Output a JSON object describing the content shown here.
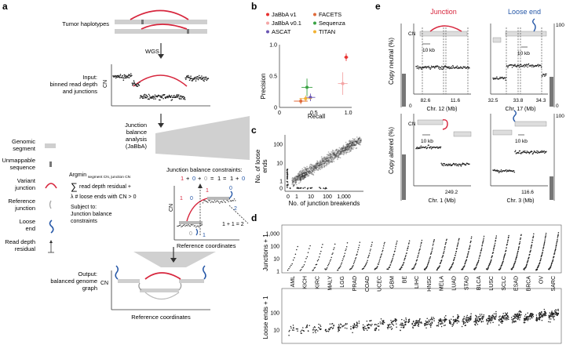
{
  "panels": {
    "a": "a",
    "b": "b",
    "c": "c",
    "d": "d",
    "e": "e"
  },
  "a": {
    "tumor_haplotypes": "Tumor haplotypes",
    "wgs": "WGS",
    "input_l1": "Input:",
    "input_l2": "binned read depth",
    "input_l3": "and junctions",
    "cn": "CN",
    "jab_l1": "Junction",
    "jab_l2": "balance",
    "jab_l3": "analysis",
    "jab_l4": "(JaBbA)",
    "leg_genomic_l1": "Genomic",
    "leg_genomic_l2": "segment",
    "leg_unmap_l1": "Unmappable",
    "leg_unmap_l2": "sequence",
    "leg_variant_l1": "Variant",
    "leg_variant_l2": "junction",
    "leg_ref_l1": "Reference",
    "leg_ref_l2": "junction",
    "leg_loose_l1": "Loose",
    "leg_loose_l2": "end",
    "leg_rd_l1": "Read depth",
    "leg_rd_l2": "residual",
    "argmin": "Argmin",
    "argmin_sub": "segment CN, junction CN",
    "sum_text": "read depth residual +",
    "lambda_text": "λ # loose ends with CN > 0",
    "subject_l1": "Subject to:",
    "subject_l2": "Junction balance",
    "subject_l3": "constraints",
    "constraints_title": "Junction balance constraints:",
    "c_1": "1",
    "c_plus1": "+",
    "c_0": "0",
    "c_plus2": "+",
    "c_0b": "0",
    "c_eq": "=",
    "c_1b": "1",
    "c_eq2": "=",
    "c_1c": "1",
    "c_plus3": "+",
    "c_0c": "0",
    "ref_coords": "Reference coordinates",
    "eq_right": "1 + 1 = 2",
    "num_1": "1",
    "num_0": "0",
    "num_1b": "1",
    "num_0b": "0",
    "num_1c": "1",
    "num_0c": "0",
    "num_2": "2",
    "output_l1": "Output:",
    "output_l2": "balanced genome",
    "output_l3": "graph"
  },
  "b": {
    "legend": [
      {
        "name": "JaBbA v1",
        "color": "#e8302f"
      },
      {
        "name": "FACETS",
        "color": "#e06a3a"
      },
      {
        "name": "JaBbA v0.1",
        "color": "#f4a6a6"
      },
      {
        "name": "Sequenza",
        "color": "#3aa344"
      },
      {
        "name": "ASCAT",
        "color": "#6a56b3"
      },
      {
        "name": "TITAN",
        "color": "#f2b233"
      }
    ],
    "ylabel": "Precision",
    "xlabel": "Recall"
  },
  "chart_data": [
    {
      "type": "scatter",
      "xlabel": "Recall",
      "ylabel": "Precision",
      "xlim": [
        0,
        1.05
      ],
      "ylim": [
        0,
        1.0
      ],
      "xticks": [
        "0",
        "0.5",
        "1.0"
      ],
      "yticks": [
        "0",
        "0.5",
        "1.0"
      ],
      "series": [
        {
          "name": "JaBbA v1",
          "color": "#e8302f",
          "x": [
            0.97
          ],
          "y": [
            0.8
          ],
          "xerr": [
            0.03
          ],
          "yerr": [
            0.06
          ]
        },
        {
          "name": "JaBbA v0.1",
          "color": "#f4a6a6",
          "x": [
            0.92
          ],
          "y": [
            0.38
          ],
          "xerr": [
            0.07
          ],
          "yerr": [
            0.18
          ]
        },
        {
          "name": "FACETS",
          "color": "#e06a3a",
          "x": [
            0.31
          ],
          "y": [
            0.1
          ],
          "xerr": [
            0.1
          ],
          "yerr": [
            0.05
          ]
        },
        {
          "name": "Sequenza",
          "color": "#3aa344",
          "x": [
            0.4
          ],
          "y": [
            0.32
          ],
          "xerr": [
            0.08
          ],
          "yerr": [
            0.14
          ]
        },
        {
          "name": "ASCAT",
          "color": "#6a56b3",
          "x": [
            0.45
          ],
          "y": [
            0.16
          ],
          "xerr": [
            0.07
          ],
          "yerr": [
            0.06
          ]
        },
        {
          "name": "TITAN",
          "color": "#f2b233",
          "x": [
            0.38
          ],
          "y": [
            0.14
          ],
          "xerr": [
            0.09
          ],
          "yerr": [
            0.05
          ]
        }
      ]
    },
    {
      "type": "scatter",
      "xlabel": "No. of junction breakends",
      "ylabel_l1": "No. of loose",
      "ylabel_l2": "ends",
      "xticks": [
        "0",
        "1",
        "10",
        "100",
        "1,000"
      ],
      "yticks": [
        "0",
        "1",
        "10",
        "100"
      ]
    },
    {
      "type": "scatter",
      "ylabel_top": "Junctions + 1",
      "ylabel_bottom": "Loose ends + 1",
      "yticks_top": [
        "1",
        "10",
        "100",
        "1,000"
      ],
      "yticks_bottom": [
        "10",
        "100"
      ],
      "categories": [
        "AML",
        "KICH",
        "KIRC",
        "MALY",
        "LGG",
        "PRAD",
        "COAD",
        "UCEC",
        "GBM",
        "BE",
        "LIHC",
        "HNSC",
        "MELA",
        "LUAD",
        "STAD",
        "BLCA",
        "LUSC",
        "SCLC",
        "ESAD",
        "BRCA",
        "OV",
        "SARC"
      ]
    },
    {
      "type": "scatter",
      "title_left": "Junction",
      "title_right": "Loose end",
      "ylabel_top": "Copy neutral (%)",
      "ylabel_bottom": "Copy altered (%)",
      "cn": "CN",
      "ytick_0": "0",
      "ytick_100": "100",
      "scalebar": "10 kb",
      "p1": {
        "x1": "82.6",
        "x2": "11.6",
        "xlabel": "Chr. 12 (Mb)"
      },
      "p2": {
        "x1": "32.5",
        "x2": "33.8",
        "x3": "34.3",
        "xlabel": "Chr. 17 (Mb)"
      },
      "p3": {
        "x1": "249.2",
        "xlabel": "Chr. 1 (Mb)"
      },
      "p4": {
        "x1": "116.6",
        "xlabel": "Chr. 3 (Mb)"
      }
    }
  ]
}
